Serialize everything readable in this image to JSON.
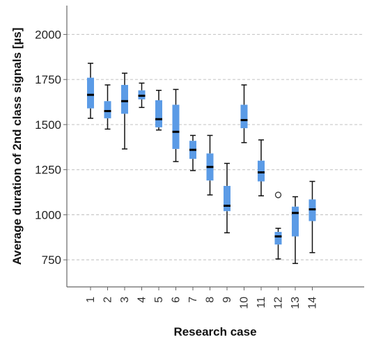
{
  "chart_data": {
    "type": "boxplot",
    "title": "",
    "xlabel": "Research case",
    "ylabel": "Average duration of 2nd class signals [µs]",
    "ylim": [
      600,
      2160
    ],
    "yticks": [
      750,
      1000,
      1250,
      1500,
      1750,
      2000
    ],
    "grid": "horizontal-dashed",
    "box_color": "#5b9be6",
    "categories": [
      "1",
      "2",
      "3",
      "4",
      "5",
      "6",
      "7",
      "8",
      "9",
      "10",
      "11",
      "12",
      "13",
      "14"
    ],
    "boxes": [
      {
        "min": 1535,
        "q1": 1590,
        "median": 1665,
        "q3": 1760,
        "max": 1840
      },
      {
        "min": 1475,
        "q1": 1535,
        "median": 1575,
        "q3": 1630,
        "max": 1720
      },
      {
        "min": 1365,
        "q1": 1560,
        "median": 1630,
        "q3": 1720,
        "max": 1785
      },
      {
        "min": 1595,
        "q1": 1640,
        "median": 1660,
        "q3": 1690,
        "max": 1730
      },
      {
        "min": 1470,
        "q1": 1485,
        "median": 1530,
        "q3": 1635,
        "max": 1690
      },
      {
        "min": 1295,
        "q1": 1365,
        "median": 1460,
        "q3": 1610,
        "max": 1695
      },
      {
        "min": 1245,
        "q1": 1310,
        "median": 1360,
        "q3": 1410,
        "max": 1440
      },
      {
        "min": 1110,
        "q1": 1190,
        "median": 1265,
        "q3": 1340,
        "max": 1440
      },
      {
        "min": 900,
        "q1": 1020,
        "median": 1050,
        "q3": 1160,
        "max": 1285
      },
      {
        "min": 1400,
        "q1": 1480,
        "median": 1525,
        "q3": 1610,
        "max": 1720
      },
      {
        "min": 1105,
        "q1": 1185,
        "median": 1235,
        "q3": 1300,
        "max": 1415
      },
      {
        "min": 755,
        "q1": 835,
        "median": 880,
        "q3": 905,
        "max": 925,
        "outliers": [
          1110
        ]
      },
      {
        "min": 730,
        "q1": 880,
        "median": 1010,
        "q3": 1045,
        "max": 1100
      },
      {
        "min": 790,
        "q1": 965,
        "median": 1030,
        "q3": 1085,
        "max": 1185
      }
    ]
  }
}
